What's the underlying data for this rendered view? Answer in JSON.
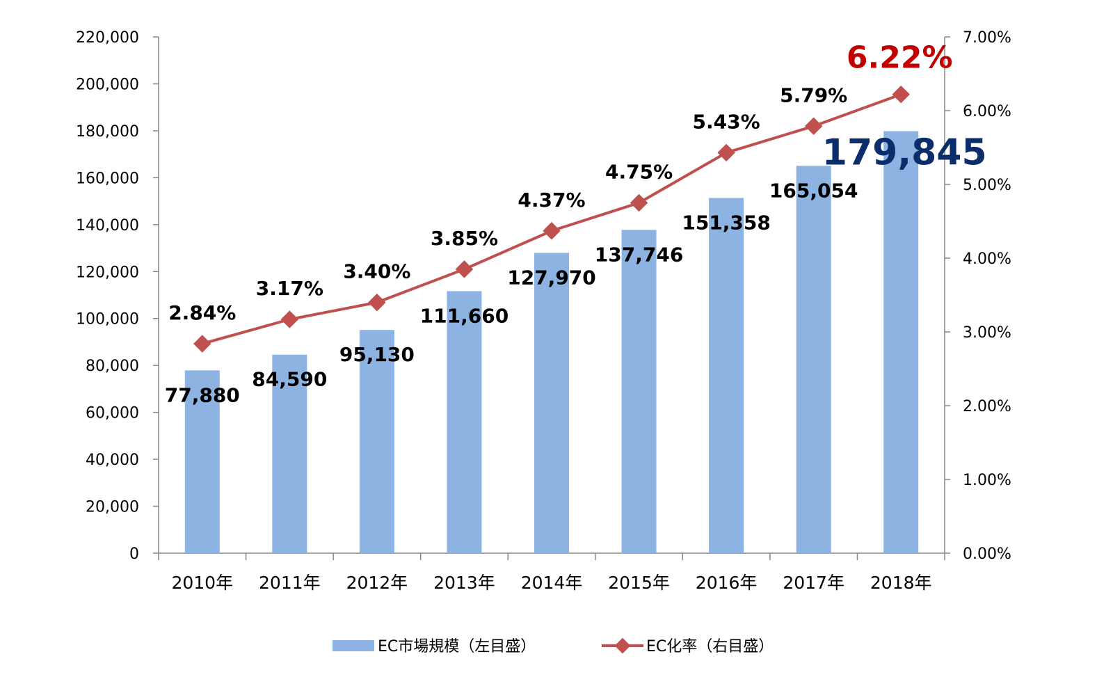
{
  "chart_data": {
    "type": "bar+line",
    "categories": [
      "2010年",
      "2011年",
      "2012年",
      "2013年",
      "2014年",
      "2015年",
      "2016年",
      "2017年",
      "2018年"
    ],
    "series": [
      {
        "name": "EC市場規模（左目盛）",
        "type": "bar",
        "axis": "left",
        "values": [
          77880,
          84590,
          95130,
          111660,
          127970,
          137746,
          151358,
          165054,
          179845
        ],
        "labels": [
          "77,880",
          "84,590",
          "95,130",
          "111,660",
          "127,970",
          "137,746",
          "151,358",
          "165,054",
          "179,845"
        ],
        "color": "#8DB3E2"
      },
      {
        "name": "EC化率（右目盛）",
        "type": "line",
        "axis": "right",
        "values": [
          2.84,
          3.17,
          3.4,
          3.85,
          4.37,
          4.75,
          5.43,
          5.79,
          6.22
        ],
        "labels": [
          "2.84%",
          "3.17%",
          "3.40%",
          "3.85%",
          "4.37%",
          "4.75%",
          "5.43%",
          "5.79%",
          "6.22%"
        ],
        "color": "#C0504D"
      }
    ],
    "highlight": {
      "bar_label_color": "#0B2D6B",
      "rate_label_color": "#C00000"
    },
    "left_axis": {
      "ylim": [
        0,
        220000
      ],
      "ticks": [
        0,
        20000,
        40000,
        60000,
        80000,
        100000,
        120000,
        140000,
        160000,
        180000,
        200000,
        220000
      ],
      "tick_labels": [
        "0",
        "20,000",
        "40,000",
        "60,000",
        "80,000",
        "100,000",
        "120,000",
        "140,000",
        "160,000",
        "180,000",
        "200,000",
        "220,000"
      ]
    },
    "right_axis": {
      "ylim": [
        0,
        7
      ],
      "ticks": [
        0,
        1,
        2,
        3,
        4,
        5,
        6,
        7
      ],
      "tick_labels": [
        "0.00%",
        "1.00%",
        "2.00%",
        "3.00%",
        "4.00%",
        "5.00%",
        "6.00%",
        "7.00%"
      ]
    },
    "grid": false,
    "legend_position": "bottom"
  }
}
